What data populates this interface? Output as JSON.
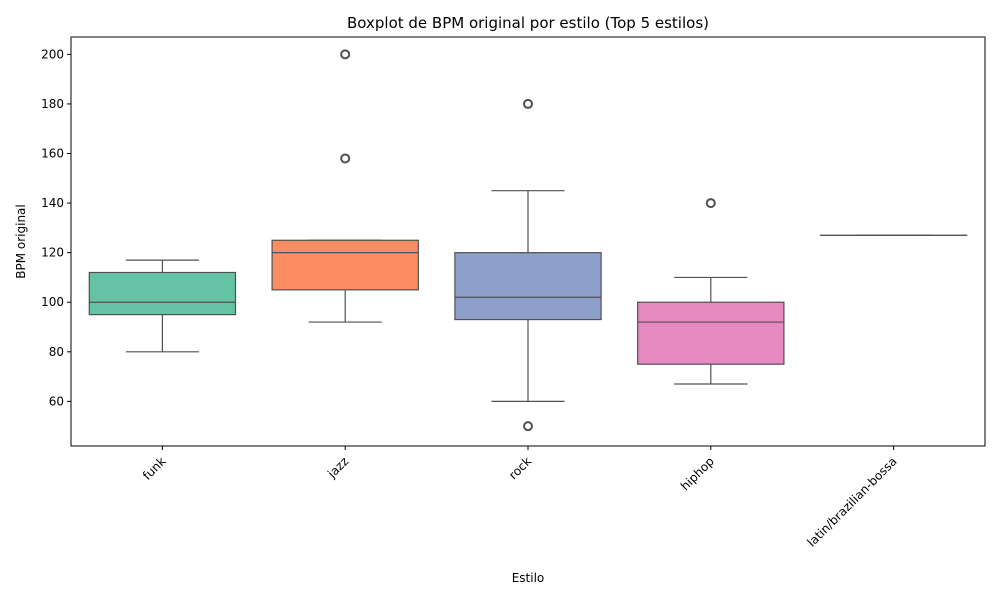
{
  "chart_data": {
    "type": "boxplot",
    "title": "Boxplot de BPM original por estilo (Top 5 estilos)",
    "xlabel": "Estilo",
    "ylabel": "BPM original",
    "ylim": [
      42,
      207
    ],
    "yticks": [
      60,
      80,
      100,
      120,
      140,
      160,
      180,
      200
    ],
    "grid": false,
    "categories": [
      "funk",
      "jazz",
      "rock",
      "hiphop",
      "latin/brazilian-bossa"
    ],
    "series": [
      {
        "category": "funk",
        "color": "#66c2a5",
        "whisker_low": 80,
        "q1": 95,
        "median": 100,
        "q3": 112,
        "whisker_high": 117,
        "outliers": []
      },
      {
        "category": "jazz",
        "color": "#fc8d62",
        "whisker_low": 92,
        "q1": 105,
        "median": 120,
        "q3": 125,
        "whisker_high": 125,
        "outliers": [
          158,
          200
        ]
      },
      {
        "category": "rock",
        "color": "#8da0cb",
        "whisker_low": 60,
        "q1": 93,
        "median": 102,
        "q3": 120,
        "whisker_high": 145,
        "outliers": [
          50,
          180
        ]
      },
      {
        "category": "hiphop",
        "color": "#e78ac3",
        "whisker_low": 67,
        "q1": 75,
        "median": 92,
        "q3": 100,
        "whisker_high": 110,
        "outliers": [
          140
        ]
      },
      {
        "category": "latin/brazilian-bossa",
        "color": "#a6d854",
        "whisker_low": 127,
        "q1": 127,
        "median": 127,
        "q3": 127,
        "whisker_high": 127,
        "outliers": []
      }
    ]
  }
}
